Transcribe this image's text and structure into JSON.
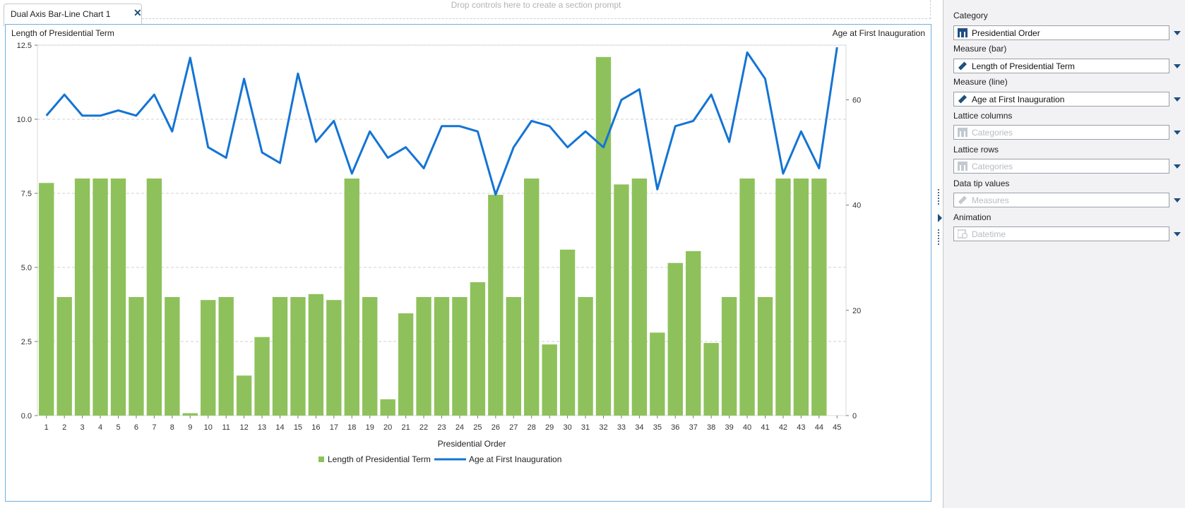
{
  "tab": {
    "label": "Dual Axis Bar-Line Chart 1"
  },
  "drop_zone": {
    "text": "Drop controls here to create a section prompt"
  },
  "colors": {
    "bar": "#8ec15b",
    "line": "#1474d4",
    "accent": "#6fb0df"
  },
  "chart_data": {
    "type": "bar-line",
    "left_axis_title": "Length of Presidential Term",
    "right_axis_title": "Age at First Inauguration",
    "xlabel": "Presidential Order",
    "categories": [
      "1",
      "2",
      "3",
      "4",
      "5",
      "6",
      "7",
      "8",
      "9",
      "10",
      "11",
      "12",
      "13",
      "14",
      "15",
      "16",
      "17",
      "18",
      "19",
      "20",
      "21",
      "22",
      "23",
      "24",
      "25",
      "26",
      "27",
      "28",
      "29",
      "30",
      "31",
      "32",
      "33",
      "34",
      "35",
      "36",
      "37",
      "38",
      "39",
      "40",
      "41",
      "42",
      "43",
      "44",
      "45"
    ],
    "y_left": {
      "min": 0,
      "max": 12.5,
      "ticks": [
        "0.0",
        "2.5",
        "5.0",
        "7.5",
        "10.0",
        "12.5"
      ]
    },
    "y_right": {
      "min": 0,
      "max": 70.4,
      "ticks": [
        "0",
        "20",
        "40",
        "60"
      ]
    },
    "series": [
      {
        "name": "Length of Presidential Term",
        "type": "bar",
        "axis": "left",
        "values": [
          7.85,
          4.0,
          8.0,
          8.0,
          8.0,
          4.0,
          8.0,
          4.0,
          0.08,
          3.9,
          4.0,
          1.35,
          2.65,
          4.0,
          4.0,
          4.1,
          3.9,
          8.0,
          4.0,
          0.55,
          3.45,
          4.0,
          4.0,
          4.0,
          4.5,
          7.45,
          4.0,
          8.0,
          2.4,
          5.6,
          4.0,
          12.1,
          7.8,
          8.0,
          2.8,
          5.15,
          5.55,
          2.45,
          4.0,
          8.0,
          4.0,
          8.0,
          8.0,
          8.0,
          null
        ]
      },
      {
        "name": "Age at First Inauguration",
        "type": "line",
        "axis": "right",
        "values": [
          57,
          61,
          57,
          57,
          58,
          57,
          61,
          54,
          68,
          51,
          49,
          64,
          50,
          48,
          65,
          52,
          56,
          46,
          54,
          49,
          51,
          47,
          55,
          55,
          54,
          42,
          51,
          56,
          55,
          51,
          54,
          51,
          60,
          62,
          43,
          55,
          56,
          61,
          52,
          69,
          64,
          46,
          54,
          47,
          70
        ]
      }
    ],
    "legend_position": "bottom",
    "grid": true
  },
  "sidebar": {
    "roles": [
      {
        "label": "Category",
        "value": "Presidential Order",
        "icon": "category-icon",
        "empty": false
      },
      {
        "label": "Measure (bar)",
        "value": "Length of Presidential Term",
        "icon": "measure-icon",
        "empty": false
      },
      {
        "label": "Measure (line)",
        "value": "Age at First Inauguration",
        "icon": "measure-icon",
        "empty": false
      },
      {
        "label": "Lattice columns",
        "value": "Categories",
        "icon": "category-icon",
        "empty": true
      },
      {
        "label": "Lattice rows",
        "value": "Categories",
        "icon": "category-icon",
        "empty": true
      },
      {
        "label": "Data tip values",
        "value": "Measures",
        "icon": "measure-icon",
        "empty": true
      },
      {
        "label": "Animation",
        "value": "Datetime",
        "icon": "datetime-icon",
        "empty": true
      }
    ]
  }
}
